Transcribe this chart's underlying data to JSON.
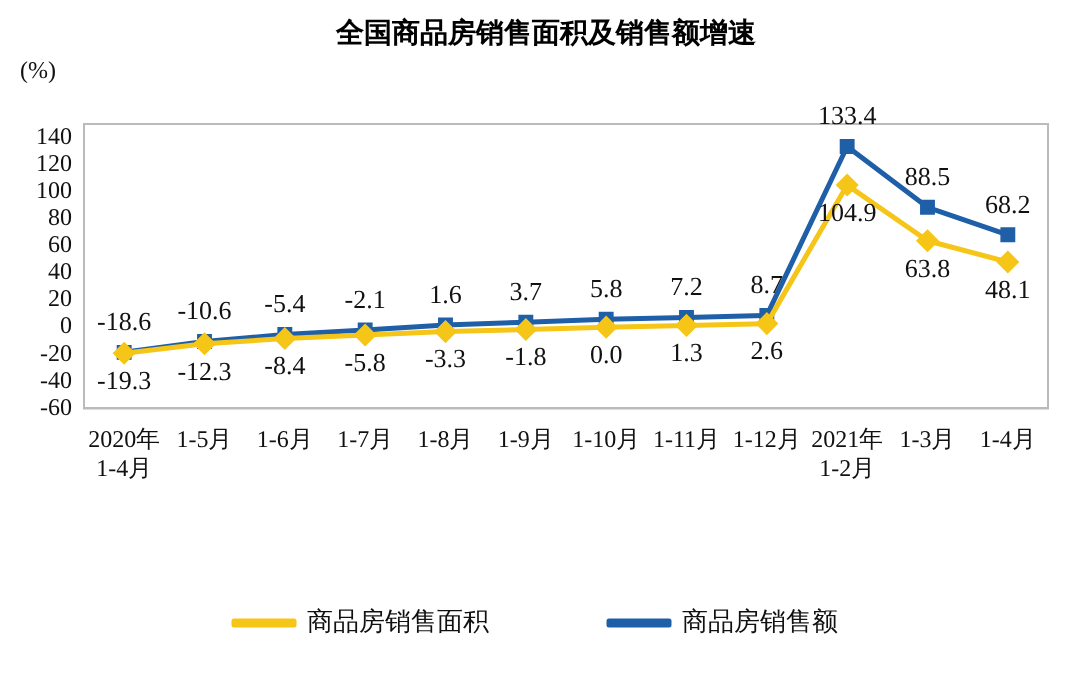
{
  "chart_data": {
    "type": "line",
    "title": "全国商品房销售面积及销售额增速",
    "ylabel": "(%)",
    "categories": [
      "2020年\n1-4月",
      "1-5月",
      "1-6月",
      "1-7月",
      "1-8月",
      "1-9月",
      "1-10月",
      "1-11月",
      "1-12月",
      "2021年\n1-2月",
      "1-3月",
      "1-4月"
    ],
    "series": [
      {
        "name": "商品房销售面积",
        "color": "#f5c518",
        "marker": "diamond",
        "values": [
          -19.3,
          -12.3,
          -8.4,
          -5.8,
          -3.3,
          -1.8,
          0.0,
          1.3,
          2.6,
          104.9,
          63.8,
          48.1
        ],
        "value_labels": [
          "-19.3",
          "-12.3",
          "-8.4",
          "-5.8",
          "-3.3",
          "-1.8",
          "0.0",
          "1.3",
          "2.6",
          "104.9",
          "63.8",
          "48.1"
        ]
      },
      {
        "name": "商品房销售额",
        "color": "#1f5fa8",
        "marker": "square",
        "values": [
          -18.6,
          -10.6,
          -5.4,
          -2.1,
          1.6,
          3.7,
          5.8,
          7.2,
          8.7,
          133.4,
          88.5,
          68.2
        ],
        "value_labels": [
          "-18.6",
          "-10.6",
          "-5.4",
          "-2.1",
          "1.6",
          "3.7",
          "5.8",
          "7.2",
          "8.7",
          "133.4",
          "88.5",
          "68.2"
        ]
      }
    ],
    "ylim": [
      -60,
      150
    ],
    "yticks": [
      -60,
      -40,
      -20,
      0,
      20,
      40,
      60,
      80,
      100,
      120,
      140
    ],
    "grid": false,
    "legend": "bottom"
  }
}
